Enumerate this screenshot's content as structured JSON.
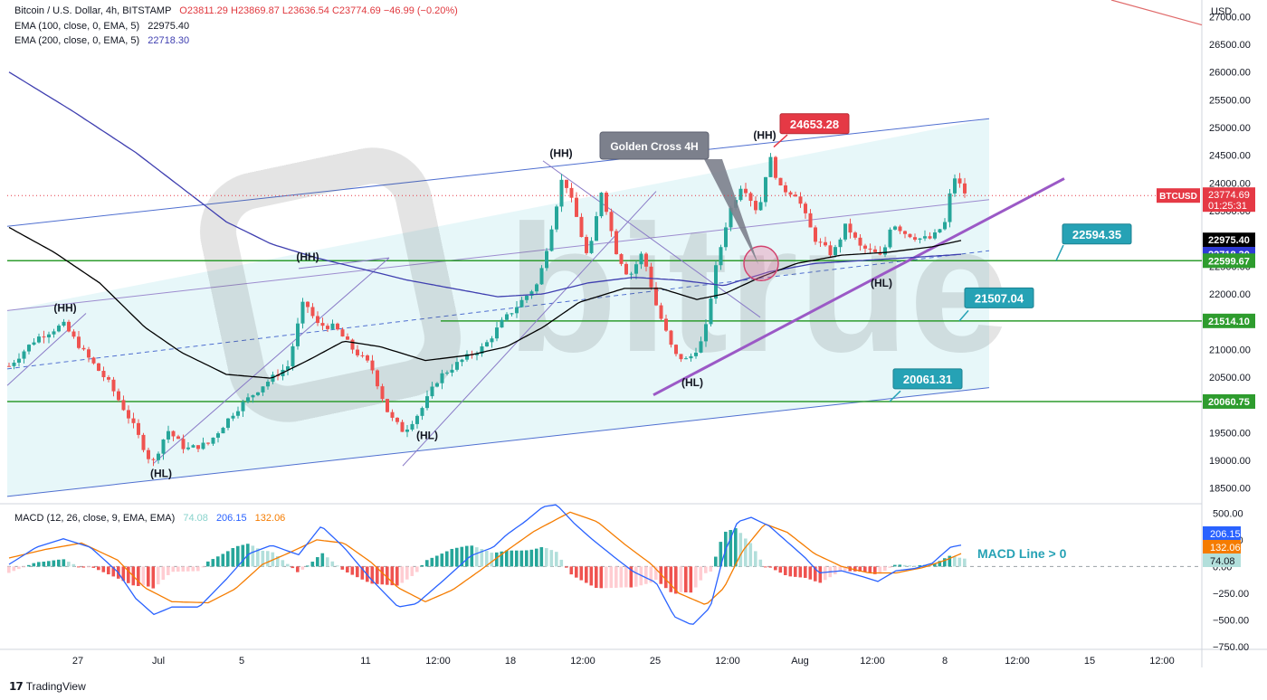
{
  "header": {
    "symbol": "Bitcoin / U.S. Dollar, 4h, BITSTAMP",
    "open_label": "O",
    "open": "23811.29",
    "high_label": "H",
    "high": "23869.87",
    "low_label": "L",
    "low": "23636.54",
    "close_label": "C",
    "close": "23774.69",
    "change": "−46.99 (−0.20%)",
    "ema100_label": "EMA (100, close, 0, EMA, 5)",
    "ema100_value": "22975.40",
    "ema200_label": "EMA (200, close, 0, EMA, 5)",
    "ema200_value": "22718.30",
    "macd_label": "MACD (12, 26, close, 9, EMA, EMA)",
    "macd_hist": "74.08",
    "macd_line": "206.15",
    "macd_signal": "132.06"
  },
  "footer": {
    "brand": "TradingView"
  },
  "colors": {
    "up": "#26a69a",
    "down": "#ef5350",
    "ema100": "#000000",
    "ema200": "#3f3fb0",
    "channel": "#4f6fd0",
    "support": "#2e9c2e",
    "trend": "#9b59c6",
    "macd_line": "#2962ff",
    "signal": "#f57c00",
    "badge_teal": "#26a2b5",
    "badge_red": "#e53945"
  },
  "chart_data": [
    {
      "type": "line",
      "title": "Bitcoin / U.S. Dollar, 4h, BITSTAMP",
      "y_axis_unit": "USD",
      "ylim": [
        18250,
        27300
      ],
      "y_ticks": [
        27000,
        26500,
        26000,
        25500,
        25000,
        24500,
        24000,
        23500,
        23000,
        22500,
        22000,
        21500,
        21000,
        20500,
        20000,
        19500,
        19000,
        18500
      ],
      "y_tick_labels": [
        "27000.00",
        "26500.00",
        "26000.00",
        "25500.00",
        "25000.00",
        "24500.00",
        "24000.00",
        "23500.00",
        "23000.00",
        "22500.00",
        "22000.00",
        "21500.00",
        "21000.00",
        "20500.00",
        "20000.00",
        "19500.00",
        "19000.00",
        "18500.00"
      ],
      "x_tick_labels": [
        "27",
        "Jul",
        "5",
        "11",
        "12:00",
        "18",
        "12:00",
        "25",
        "12:00",
        "Aug",
        "12:00",
        "8",
        "12:00",
        "15",
        "12:00"
      ],
      "x_tick_positions": [
        86,
        175,
        267,
        404,
        484,
        564,
        644,
        724,
        804,
        884,
        964,
        1044,
        1124,
        1204,
        1284
      ],
      "price_anchors": [
        [
          10,
          20700
        ],
        [
          40,
          21200
        ],
        [
          70,
          21450
        ],
        [
          95,
          20900
        ],
        [
          120,
          20400
        ],
        [
          145,
          19700
        ],
        [
          168,
          18920
        ],
        [
          185,
          19550
        ],
        [
          205,
          19200
        ],
        [
          230,
          19300
        ],
        [
          260,
          19900
        ],
        [
          290,
          20350
        ],
        [
          318,
          20700
        ],
        [
          336,
          21900
        ],
        [
          350,
          21450
        ],
        [
          370,
          21400
        ],
        [
          390,
          21000
        ],
        [
          410,
          20700
        ],
        [
          430,
          19800
        ],
        [
          446,
          19520
        ],
        [
          465,
          19900
        ],
        [
          485,
          20500
        ],
        [
          510,
          20800
        ],
        [
          535,
          21050
        ],
        [
          555,
          21500
        ],
        [
          575,
          21850
        ],
        [
          595,
          22200
        ],
        [
          612,
          23400
        ],
        [
          622,
          24150
        ],
        [
          635,
          23500
        ],
        [
          650,
          22600
        ],
        [
          665,
          23900
        ],
        [
          680,
          22800
        ],
        [
          695,
          22300
        ],
        [
          710,
          22750
        ],
        [
          725,
          21800
        ],
        [
          745,
          20900
        ],
        [
          760,
          20800
        ],
        [
          778,
          21200
        ],
        [
          790,
          22400
        ],
        [
          805,
          23450
        ],
        [
          820,
          24000
        ],
        [
          838,
          23450
        ],
        [
          850,
          24500
        ],
        [
          862,
          23900
        ],
        [
          880,
          23800
        ],
        [
          900,
          23000
        ],
        [
          920,
          22700
        ],
        [
          935,
          23250
        ],
        [
          950,
          22850
        ],
        [
          965,
          22750
        ],
        [
          975,
          22650
        ],
        [
          985,
          23300
        ],
        [
          1000,
          23100
        ],
        [
          1015,
          23000
        ],
        [
          1030,
          23000
        ],
        [
          1045,
          23300
        ],
        [
          1053,
          24150
        ],
        [
          1068,
          23775
        ]
      ],
      "ema100_anchors": [
        [
          10,
          23200
        ],
        [
          60,
          22750
        ],
        [
          110,
          22200
        ],
        [
          160,
          21400
        ],
        [
          200,
          20950
        ],
        [
          250,
          20550
        ],
        [
          300,
          20480
        ],
        [
          340,
          20800
        ],
        [
          380,
          21150
        ],
        [
          420,
          21050
        ],
        [
          470,
          20800
        ],
        [
          520,
          20900
        ],
        [
          560,
          21050
        ],
        [
          600,
          21400
        ],
        [
          640,
          21850
        ],
        [
          690,
          22100
        ],
        [
          730,
          22100
        ],
        [
          770,
          21900
        ],
        [
          800,
          22000
        ],
        [
          840,
          22300
        ],
        [
          880,
          22550
        ],
        [
          930,
          22700
        ],
        [
          980,
          22750
        ],
        [
          1030,
          22850
        ],
        [
          1065,
          22975
        ]
      ],
      "ema200_anchors": [
        [
          10,
          26000
        ],
        [
          80,
          25300
        ],
        [
          150,
          24550
        ],
        [
          210,
          23800
        ],
        [
          250,
          23300
        ],
        [
          300,
          22900
        ],
        [
          350,
          22650
        ],
        [
          400,
          22450
        ],
        [
          450,
          22250
        ],
        [
          500,
          22100
        ],
        [
          550,
          21950
        ],
        [
          600,
          22000
        ],
        [
          650,
          22200
        ],
        [
          700,
          22300
        ],
        [
          750,
          22250
        ],
        [
          800,
          22150
        ],
        [
          850,
          22400
        ],
        [
          900,
          22550
        ],
        [
          950,
          22600
        ],
        [
          1000,
          22650
        ],
        [
          1065,
          22718
        ]
      ],
      "series": [
        {
          "name": "EMA (100, close, 0, EMA, 5)",
          "last_value": 22975.4
        },
        {
          "name": "EMA (200, close, 0, EMA, 5)",
          "last_value": 22718.3
        }
      ],
      "last_price_label": "BTCUSD",
      "last_price": "23774.69",
      "countdown": "01:25:31",
      "price_badges": [
        {
          "value": 22975.4,
          "text": "22975.40",
          "color": "#000000"
        },
        {
          "value": 22718.3,
          "text": "22718.30",
          "color": "#2f3bd6"
        },
        {
          "value": 22599.67,
          "text": "22599.67",
          "color": "#2e9c2e"
        },
        {
          "value": 21514.1,
          "text": "21514.10",
          "color": "#2e9c2e"
        },
        {
          "value": 20060.75,
          "text": "20060.75",
          "color": "#2e9c2e"
        }
      ],
      "horizontal_levels": [
        22599.67,
        21514.1,
        20060.75
      ],
      "annotations": {
        "swing_labels": [
          {
            "text": "(HH)",
            "x": 72,
            "y": 21680
          },
          {
            "text": "(HH)",
            "x": 340,
            "y": 22600
          },
          {
            "text": "(HH)",
            "x": 620,
            "y": 24470
          },
          {
            "text": "(HH)",
            "x": 845,
            "y": 24800
          },
          {
            "text": "(HL)",
            "x": 178,
            "y": 18700
          },
          {
            "text": "(HL)",
            "x": 472,
            "y": 19380
          },
          {
            "text": "(HL)",
            "x": 765,
            "y": 20340
          },
          {
            "text": "(HL)",
            "x": 974,
            "y": 22130
          }
        ],
        "callout": "Golden Cross 4H",
        "level_badges": [
          {
            "text": "24653.28",
            "x": 900,
            "y": 25070,
            "color": "#e53945"
          },
          {
            "text": "22594.35",
            "x": 1212,
            "y": 23080,
            "color": "#26a2b5"
          },
          {
            "text": "21507.04",
            "x": 1104,
            "y": 21930,
            "color": "#26a2b5"
          },
          {
            "text": "20061.31",
            "x": 1025,
            "y": 20470,
            "color": "#26a2b5"
          }
        ],
        "watermark": "bitrue"
      }
    },
    {
      "type": "bar",
      "title": "MACD (12, 26, close, 9, EMA, EMA)",
      "ylim": [
        -760,
        580
      ],
      "y_ticks": [
        500,
        250,
        0,
        -250,
        -500,
        -750
      ],
      "y_tick_labels": [
        "500.00",
        "250.00",
        "0.00",
        "−250.00",
        "−500.00",
        "−750.00"
      ],
      "macd_anchors": [
        [
          10,
          20
        ],
        [
          40,
          180
        ],
        [
          70,
          260
        ],
        [
          100,
          180
        ],
        [
          130,
          -50
        ],
        [
          150,
          -300
        ],
        [
          170,
          -450
        ],
        [
          190,
          -380
        ],
        [
          220,
          -380
        ],
        [
          250,
          -120
        ],
        [
          275,
          120
        ],
        [
          300,
          200
        ],
        [
          330,
          110
        ],
        [
          355,
          380
        ],
        [
          380,
          180
        ],
        [
          410,
          -120
        ],
        [
          440,
          -380
        ],
        [
          460,
          -350
        ],
        [
          490,
          -130
        ],
        [
          520,
          100
        ],
        [
          545,
          180
        ],
        [
          560,
          300
        ],
        [
          580,
          420
        ],
        [
          600,
          560
        ],
        [
          615,
          580
        ],
        [
          635,
          400
        ],
        [
          655,
          250
        ],
        [
          680,
          80
        ],
        [
          700,
          -50
        ],
        [
          725,
          -150
        ],
        [
          745,
          -470
        ],
        [
          765,
          -550
        ],
        [
          785,
          -380
        ],
        [
          800,
          120
        ],
        [
          815,
          420
        ],
        [
          830,
          460
        ],
        [
          850,
          380
        ],
        [
          870,
          230
        ],
        [
          890,
          80
        ],
        [
          905,
          -60
        ],
        [
          930,
          -40
        ],
        [
          955,
          -100
        ],
        [
          970,
          -140
        ],
        [
          990,
          -40
        ],
        [
          1010,
          -20
        ],
        [
          1030,
          30
        ],
        [
          1050,
          180
        ],
        [
          1065,
          206
        ]
      ],
      "signal_anchors": [
        [
          10,
          80
        ],
        [
          50,
          160
        ],
        [
          90,
          220
        ],
        [
          130,
          60
        ],
        [
          160,
          -200
        ],
        [
          190,
          -330
        ],
        [
          230,
          -340
        ],
        [
          260,
          -210
        ],
        [
          290,
          20
        ],
        [
          320,
          130
        ],
        [
          350,
          250
        ],
        [
          380,
          220
        ],
        [
          410,
          40
        ],
        [
          440,
          -200
        ],
        [
          470,
          -330
        ],
        [
          500,
          -220
        ],
        [
          530,
          -40
        ],
        [
          560,
          150
        ],
        [
          590,
          330
        ],
        [
          630,
          510
        ],
        [
          660,
          420
        ],
        [
          690,
          210
        ],
        [
          720,
          20
        ],
        [
          750,
          -250
        ],
        [
          780,
          -360
        ],
        [
          800,
          -200
        ],
        [
          820,
          140
        ],
        [
          845,
          400
        ],
        [
          870,
          320
        ],
        [
          900,
          120
        ],
        [
          930,
          0
        ],
        [
          960,
          -60
        ],
        [
          990,
          -60
        ],
        [
          1020,
          -10
        ],
        [
          1045,
          60
        ],
        [
          1065,
          132
        ]
      ],
      "series": [
        {
          "name": "Histogram",
          "last_value": 74.08
        },
        {
          "name": "MACD",
          "last_value": 206.15
        },
        {
          "name": "Signal",
          "last_value": 132.06
        }
      ],
      "annotation": "MACD Line > 0"
    }
  ]
}
